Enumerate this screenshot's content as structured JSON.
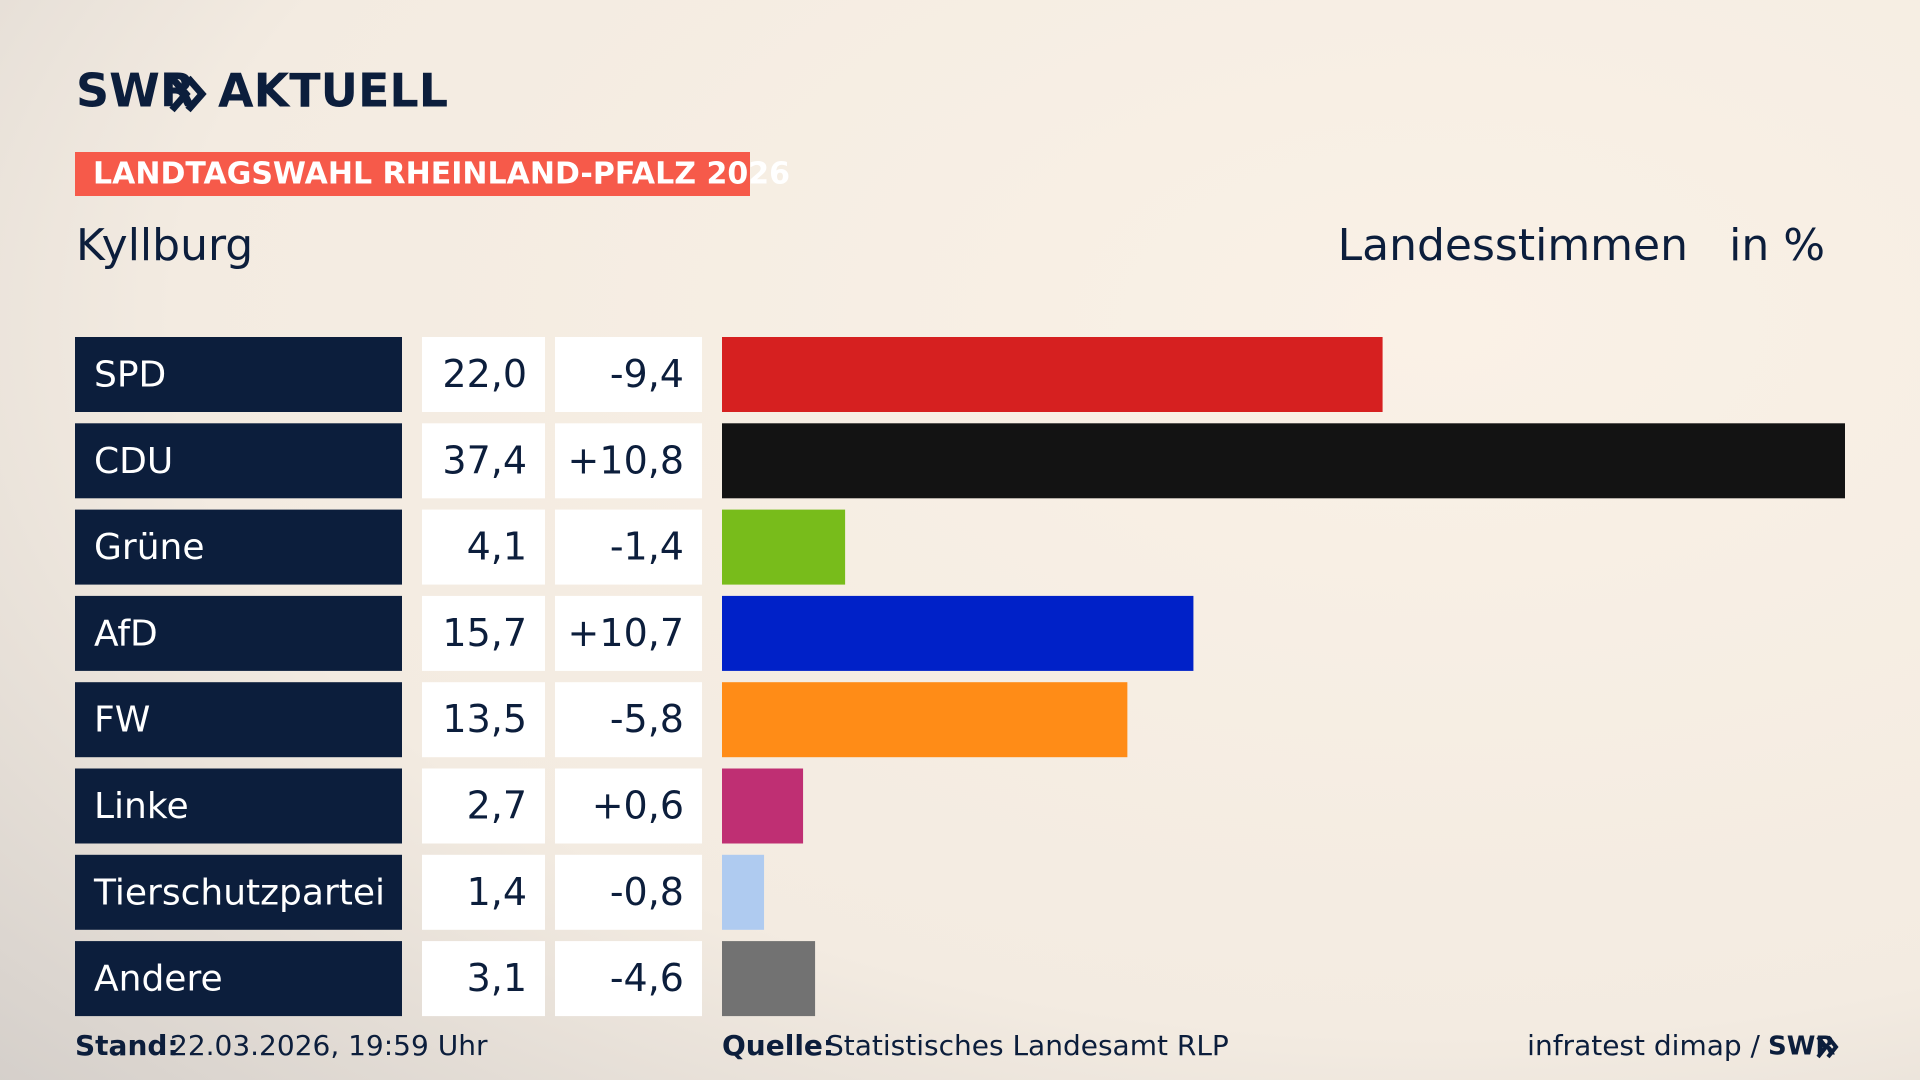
{
  "header": {
    "brand": "SWR",
    "brand_sub": "AKTUELL",
    "banner": "LANDTAGSWAHL RHEINLAND-PFALZ 2026"
  },
  "chart_data": {
    "type": "bar",
    "orientation": "horizontal",
    "title": "Kyllburg",
    "value_header": "Landesstimmen",
    "unit": "in %",
    "categories": [
      "SPD",
      "CDU",
      "Grüne",
      "AfD",
      "FW",
      "Linke",
      "Tierschutzpartei",
      "Andere"
    ],
    "values": [
      22.0,
      37.4,
      4.1,
      15.7,
      13.5,
      2.7,
      1.4,
      3.1
    ],
    "value_labels": [
      "22,0",
      "37,4",
      "4,1",
      "15,7",
      "13,5",
      "2,7",
      "1,4",
      "3,1"
    ],
    "changes": [
      -9.4,
      10.8,
      -1.4,
      10.7,
      -5.8,
      0.6,
      -0.8,
      -4.6
    ],
    "change_labels": [
      "-9,4",
      "+10,8",
      "-1,4",
      "+10,7",
      "-5,8",
      "+0,6",
      "-0,8",
      "-4,6"
    ],
    "colors": [
      "#d62020",
      "#131313",
      "#78bc1b",
      "#0021c8",
      "#ff8c17",
      "#bf2f73",
      "#afcbf0",
      "#727272"
    ],
    "xlim": [
      0,
      37.4
    ]
  },
  "footer": {
    "stand_label": "Stand:",
    "stand": "22.03.2026, 19:59 Uhr",
    "source_label": "Quelle:",
    "source": "Statistisches Landesamt RLP",
    "credit": "infratest dimap /",
    "credit_brand": "SWR"
  }
}
